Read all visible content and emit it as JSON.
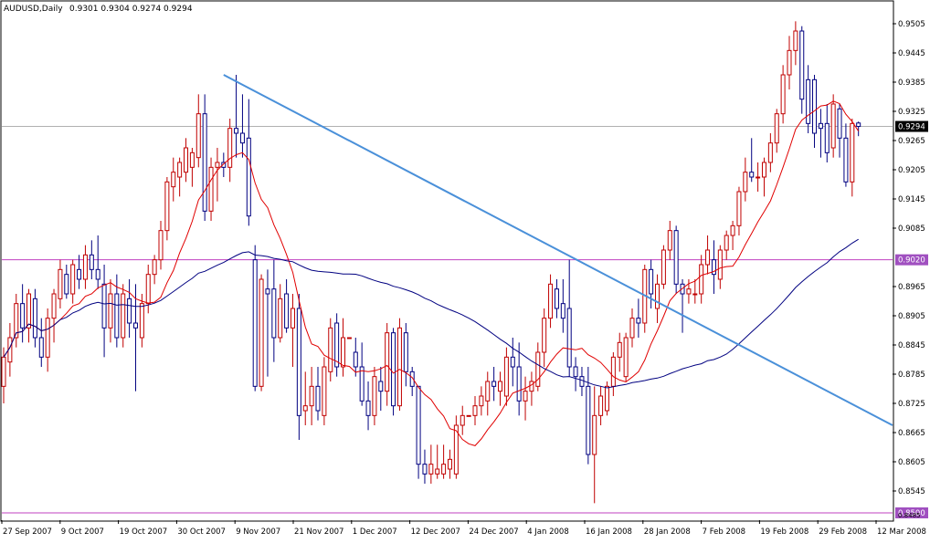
{
  "header": {
    "symbol": "AUDUSD,Daily",
    "ohlc": "0.9301 0.9304 0.9274 0.9294"
  },
  "colors": {
    "background": "#ffffff",
    "frame": "#000000",
    "bull": "#c00000",
    "bear": "#000080",
    "ma_fast": "#e00000",
    "ma_slow": "#000080",
    "trendline": "#4a90d9",
    "hline": "#c040c0",
    "price_line": "#b0b0b0",
    "label_bg_current": "#000000",
    "label_bg_level": "#a050c0"
  },
  "price_labels": {
    "current": "0.9294",
    "level_upper": "0.9020",
    "level_lower": "0.8500",
    "edge_partial": "0.8485"
  },
  "chart_data": {
    "type": "candlestick",
    "symbol": "AUDUSD",
    "timeframe": "Daily",
    "ylim": [
      0.8485,
      0.955
    ],
    "y_ticks": [
      "0.9505",
      "0.9445",
      "0.9385",
      "0.9325",
      "0.9265",
      "0.9205",
      "0.9145",
      "0.9085",
      "0.8965",
      "0.8905",
      "0.8845",
      "0.8785",
      "0.8725",
      "0.8665",
      "0.8605",
      "0.8545"
    ],
    "x_ticks": [
      "27 Sep 2007",
      "9 Oct 2007",
      "19 Oct 2007",
      "30 Oct 2007",
      "9 Nov 2007",
      "21 Nov 2007",
      "1 Dec 2007",
      "12 Dec 2007",
      "24 Dec 2007",
      "4 Jan 2008",
      "16 Jan 2008",
      "28 Jan 2008",
      "7 Feb 2008",
      "19 Feb 2008",
      "29 Feb 2008",
      "12 Mar 2008"
    ],
    "candles": [
      {
        "o": 0.876,
        "h": 0.884,
        "l": 0.8725,
        "c": 0.882
      },
      {
        "o": 0.881,
        "h": 0.889,
        "l": 0.878,
        "c": 0.886
      },
      {
        "o": 0.886,
        "h": 0.895,
        "l": 0.884,
        "c": 0.893
      },
      {
        "o": 0.893,
        "h": 0.897,
        "l": 0.885,
        "c": 0.888
      },
      {
        "o": 0.888,
        "h": 0.896,
        "l": 0.885,
        "c": 0.895
      },
      {
        "o": 0.894,
        "h": 0.896,
        "l": 0.884,
        "c": 0.886
      },
      {
        "o": 0.886,
        "h": 0.89,
        "l": 0.88,
        "c": 0.882
      },
      {
        "o": 0.882,
        "h": 0.892,
        "l": 0.879,
        "c": 0.89
      },
      {
        "o": 0.89,
        "h": 0.896,
        "l": 0.885,
        "c": 0.895
      },
      {
        "o": 0.894,
        "h": 0.902,
        "l": 0.892,
        "c": 0.9
      },
      {
        "o": 0.899,
        "h": 0.901,
        "l": 0.894,
        "c": 0.895
      },
      {
        "o": 0.895,
        "h": 0.902,
        "l": 0.893,
        "c": 0.901
      },
      {
        "o": 0.9,
        "h": 0.903,
        "l": 0.896,
        "c": 0.898
      },
      {
        "o": 0.898,
        "h": 0.905,
        "l": 0.896,
        "c": 0.903
      },
      {
        "o": 0.903,
        "h": 0.906,
        "l": 0.898,
        "c": 0.9
      },
      {
        "o": 0.9,
        "h": 0.907,
        "l": 0.896,
        "c": 0.898
      },
      {
        "o": 0.897,
        "h": 0.901,
        "l": 0.882,
        "c": 0.888
      },
      {
        "o": 0.888,
        "h": 0.898,
        "l": 0.885,
        "c": 0.895
      },
      {
        "o": 0.895,
        "h": 0.899,
        "l": 0.884,
        "c": 0.886
      },
      {
        "o": 0.886,
        "h": 0.897,
        "l": 0.884,
        "c": 0.895
      },
      {
        "o": 0.894,
        "h": 0.898,
        "l": 0.886,
        "c": 0.889
      },
      {
        "o": 0.889,
        "h": 0.897,
        "l": 0.875,
        "c": 0.888
      },
      {
        "o": 0.886,
        "h": 0.895,
        "l": 0.884,
        "c": 0.893
      },
      {
        "o": 0.893,
        "h": 0.901,
        "l": 0.891,
        "c": 0.899
      },
      {
        "o": 0.899,
        "h": 0.903,
        "l": 0.897,
        "c": 0.902
      },
      {
        "o": 0.902,
        "h": 0.91,
        "l": 0.9,
        "c": 0.908
      },
      {
        "o": 0.908,
        "h": 0.919,
        "l": 0.906,
        "c": 0.918
      },
      {
        "o": 0.917,
        "h": 0.923,
        "l": 0.914,
        "c": 0.92
      },
      {
        "o": 0.919,
        "h": 0.923,
        "l": 0.915,
        "c": 0.922
      },
      {
        "o": 0.92,
        "h": 0.927,
        "l": 0.918,
        "c": 0.925
      },
      {
        "o": 0.921,
        "h": 0.925,
        "l": 0.917,
        "c": 0.924
      },
      {
        "o": 0.923,
        "h": 0.936,
        "l": 0.921,
        "c": 0.932
      },
      {
        "o": 0.932,
        "h": 0.936,
        "l": 0.91,
        "c": 0.912
      },
      {
        "o": 0.912,
        "h": 0.923,
        "l": 0.91,
        "c": 0.921
      },
      {
        "o": 0.921,
        "h": 0.925,
        "l": 0.914,
        "c": 0.922
      },
      {
        "o": 0.922,
        "h": 0.924,
        "l": 0.919,
        "c": 0.921
      },
      {
        "o": 0.921,
        "h": 0.931,
        "l": 0.918,
        "c": 0.929
      },
      {
        "o": 0.929,
        "h": 0.94,
        "l": 0.923,
        "c": 0.928
      },
      {
        "o": 0.928,
        "h": 0.936,
        "l": 0.923,
        "c": 0.926
      },
      {
        "o": 0.927,
        "h": 0.935,
        "l": 0.909,
        "c": 0.911
      },
      {
        "o": 0.902,
        "h": 0.905,
        "l": 0.875,
        "c": 0.876
      },
      {
        "o": 0.876,
        "h": 0.899,
        "l": 0.875,
        "c": 0.898
      },
      {
        "o": 0.896,
        "h": 0.9,
        "l": 0.878,
        "c": 0.895
      },
      {
        "o": 0.896,
        "h": 0.902,
        "l": 0.881,
        "c": 0.886
      },
      {
        "o": 0.886,
        "h": 0.897,
        "l": 0.885,
        "c": 0.894
      },
      {
        "o": 0.895,
        "h": 0.898,
        "l": 0.887,
        "c": 0.888
      },
      {
        "o": 0.888,
        "h": 0.895,
        "l": 0.88,
        "c": 0.892
      },
      {
        "o": 0.892,
        "h": 0.895,
        "l": 0.865,
        "c": 0.87
      },
      {
        "o": 0.871,
        "h": 0.879,
        "l": 0.868,
        "c": 0.872
      },
      {
        "o": 0.872,
        "h": 0.88,
        "l": 0.868,
        "c": 0.876
      },
      {
        "o": 0.876,
        "h": 0.88,
        "l": 0.869,
        "c": 0.871
      },
      {
        "o": 0.87,
        "h": 0.882,
        "l": 0.868,
        "c": 0.88
      },
      {
        "o": 0.879,
        "h": 0.89,
        "l": 0.877,
        "c": 0.888
      },
      {
        "o": 0.889,
        "h": 0.891,
        "l": 0.878,
        "c": 0.88
      },
      {
        "o": 0.88,
        "h": 0.89,
        "l": 0.878,
        "c": 0.886
      },
      {
        "o": 0.886,
        "h": 0.886,
        "l": 0.886,
        "c": 0.886
      },
      {
        "o": 0.883,
        "h": 0.886,
        "l": 0.878,
        "c": 0.88
      },
      {
        "o": 0.88,
        "h": 0.885,
        "l": 0.872,
        "c": 0.873
      },
      {
        "o": 0.873,
        "h": 0.877,
        "l": 0.867,
        "c": 0.87
      },
      {
        "o": 0.87,
        "h": 0.88,
        "l": 0.868,
        "c": 0.878
      },
      {
        "o": 0.877,
        "h": 0.88,
        "l": 0.871,
        "c": 0.875
      },
      {
        "o": 0.875,
        "h": 0.889,
        "l": 0.872,
        "c": 0.887
      },
      {
        "o": 0.887,
        "h": 0.888,
        "l": 0.87,
        "c": 0.872
      },
      {
        "o": 0.872,
        "h": 0.89,
        "l": 0.871,
        "c": 0.888
      },
      {
        "o": 0.887,
        "h": 0.889,
        "l": 0.876,
        "c": 0.879
      },
      {
        "o": 0.879,
        "h": 0.88,
        "l": 0.874,
        "c": 0.876
      },
      {
        "o": 0.876,
        "h": 0.876,
        "l": 0.857,
        "c": 0.86
      },
      {
        "o": 0.86,
        "h": 0.863,
        "l": 0.856,
        "c": 0.858
      },
      {
        "o": 0.858,
        "h": 0.864,
        "l": 0.856,
        "c": 0.86
      },
      {
        "o": 0.858,
        "h": 0.864,
        "l": 0.857,
        "c": 0.859
      },
      {
        "o": 0.858,
        "h": 0.864,
        "l": 0.857,
        "c": 0.86
      },
      {
        "o": 0.859,
        "h": 0.863,
        "l": 0.857,
        "c": 0.861
      },
      {
        "o": 0.858,
        "h": 0.87,
        "l": 0.857,
        "c": 0.868
      },
      {
        "o": 0.868,
        "h": 0.872,
        "l": 0.866,
        "c": 0.87
      },
      {
        "o": 0.87,
        "h": 0.87,
        "l": 0.87,
        "c": 0.87
      },
      {
        "o": 0.87,
        "h": 0.874,
        "l": 0.868,
        "c": 0.872
      },
      {
        "o": 0.872,
        "h": 0.876,
        "l": 0.87,
        "c": 0.874
      },
      {
        "o": 0.873,
        "h": 0.879,
        "l": 0.87,
        "c": 0.877
      },
      {
        "o": 0.877,
        "h": 0.88,
        "l": 0.873,
        "c": 0.876
      },
      {
        "o": 0.875,
        "h": 0.879,
        "l": 0.872,
        "c": 0.877
      },
      {
        "o": 0.874,
        "h": 0.884,
        "l": 0.872,
        "c": 0.882
      },
      {
        "o": 0.882,
        "h": 0.886,
        "l": 0.876,
        "c": 0.88
      },
      {
        "o": 0.88,
        "h": 0.885,
        "l": 0.87,
        "c": 0.873
      },
      {
        "o": 0.873,
        "h": 0.878,
        "l": 0.869,
        "c": 0.875
      },
      {
        "o": 0.875,
        "h": 0.879,
        "l": 0.872,
        "c": 0.877
      },
      {
        "o": 0.876,
        "h": 0.885,
        "l": 0.875,
        "c": 0.883
      },
      {
        "o": 0.883,
        "h": 0.892,
        "l": 0.88,
        "c": 0.89
      },
      {
        "o": 0.89,
        "h": 0.899,
        "l": 0.888,
        "c": 0.897
      },
      {
        "o": 0.896,
        "h": 0.898,
        "l": 0.89,
        "c": 0.892
      },
      {
        "o": 0.893,
        "h": 0.898,
        "l": 0.887,
        "c": 0.89
      },
      {
        "o": 0.892,
        "h": 0.902,
        "l": 0.878,
        "c": 0.88
      },
      {
        "o": 0.88,
        "h": 0.882,
        "l": 0.875,
        "c": 0.878
      },
      {
        "o": 0.878,
        "h": 0.88,
        "l": 0.874,
        "c": 0.876
      },
      {
        "o": 0.876,
        "h": 0.88,
        "l": 0.86,
        "c": 0.862
      },
      {
        "o": 0.862,
        "h": 0.876,
        "l": 0.852,
        "c": 0.87
      },
      {
        "o": 0.87,
        "h": 0.876,
        "l": 0.868,
        "c": 0.874
      },
      {
        "o": 0.871,
        "h": 0.877,
        "l": 0.87,
        "c": 0.876
      },
      {
        "o": 0.876,
        "h": 0.883,
        "l": 0.874,
        "c": 0.882
      },
      {
        "o": 0.882,
        "h": 0.887,
        "l": 0.879,
        "c": 0.885
      },
      {
        "o": 0.878,
        "h": 0.887,
        "l": 0.877,
        "c": 0.886
      },
      {
        "o": 0.886,
        "h": 0.892,
        "l": 0.884,
        "c": 0.89
      },
      {
        "o": 0.89,
        "h": 0.894,
        "l": 0.886,
        "c": 0.889
      },
      {
        "o": 0.889,
        "h": 0.901,
        "l": 0.887,
        "c": 0.9
      },
      {
        "o": 0.9,
        "h": 0.902,
        "l": 0.892,
        "c": 0.895
      },
      {
        "o": 0.892,
        "h": 0.899,
        "l": 0.889,
        "c": 0.897
      },
      {
        "o": 0.897,
        "h": 0.905,
        "l": 0.896,
        "c": 0.904
      },
      {
        "o": 0.904,
        "h": 0.91,
        "l": 0.902,
        "c": 0.908
      },
      {
        "o": 0.908,
        "h": 0.909,
        "l": 0.895,
        "c": 0.897
      },
      {
        "o": 0.897,
        "h": 0.898,
        "l": 0.887,
        "c": 0.895
      },
      {
        "o": 0.895,
        "h": 0.898,
        "l": 0.893,
        "c": 0.896
      },
      {
        "o": 0.895,
        "h": 0.898,
        "l": 0.893,
        "c": 0.895
      },
      {
        "o": 0.895,
        "h": 0.903,
        "l": 0.893,
        "c": 0.901
      },
      {
        "o": 0.901,
        "h": 0.907,
        "l": 0.899,
        "c": 0.904
      },
      {
        "o": 0.902,
        "h": 0.906,
        "l": 0.895,
        "c": 0.899
      },
      {
        "o": 0.898,
        "h": 0.905,
        "l": 0.896,
        "c": 0.904
      },
      {
        "o": 0.904,
        "h": 0.908,
        "l": 0.902,
        "c": 0.907
      },
      {
        "o": 0.907,
        "h": 0.91,
        "l": 0.904,
        "c": 0.909
      },
      {
        "o": 0.909,
        "h": 0.917,
        "l": 0.907,
        "c": 0.916
      },
      {
        "o": 0.916,
        "h": 0.923,
        "l": 0.914,
        "c": 0.92
      },
      {
        "o": 0.92,
        "h": 0.927,
        "l": 0.918,
        "c": 0.919
      },
      {
        "o": 0.919,
        "h": 0.922,
        "l": 0.916,
        "c": 0.919
      },
      {
        "o": 0.919,
        "h": 0.923,
        "l": 0.915,
        "c": 0.922
      },
      {
        "o": 0.922,
        "h": 0.928,
        "l": 0.92,
        "c": 0.926
      },
      {
        "o": 0.926,
        "h": 0.933,
        "l": 0.924,
        "c": 0.932
      },
      {
        "o": 0.932,
        "h": 0.942,
        "l": 0.93,
        "c": 0.94
      },
      {
        "o": 0.94,
        "h": 0.948,
        "l": 0.937,
        "c": 0.945
      },
      {
        "o": 0.945,
        "h": 0.951,
        "l": 0.942,
        "c": 0.949
      },
      {
        "o": 0.949,
        "h": 0.95,
        "l": 0.932,
        "c": 0.935
      },
      {
        "o": 0.939,
        "h": 0.942,
        "l": 0.928,
        "c": 0.93
      },
      {
        "o": 0.939,
        "h": 0.94,
        "l": 0.925,
        "c": 0.928
      },
      {
        "o": 0.93,
        "h": 0.933,
        "l": 0.923,
        "c": 0.929
      },
      {
        "o": 0.93,
        "h": 0.934,
        "l": 0.922,
        "c": 0.924
      },
      {
        "o": 0.925,
        "h": 0.936,
        "l": 0.923,
        "c": 0.934
      },
      {
        "o": 0.933,
        "h": 0.934,
        "l": 0.923,
        "c": 0.927
      },
      {
        "o": 0.927,
        "h": 0.93,
        "l": 0.917,
        "c": 0.918
      },
      {
        "o": 0.918,
        "h": 0.931,
        "l": 0.915,
        "c": 0.93
      },
      {
        "o": 0.9301,
        "h": 0.9304,
        "l": 0.9274,
        "c": 0.9294
      }
    ],
    "overlays": {
      "ma_fast": "red moving average",
      "ma_slow": "navy moving average",
      "trendline": {
        "from_price": 0.94,
        "to_price": 0.868
      },
      "horizontal_levels": [
        0.902,
        0.85
      ],
      "current_price_line": 0.9294
    },
    "grid": false
  }
}
